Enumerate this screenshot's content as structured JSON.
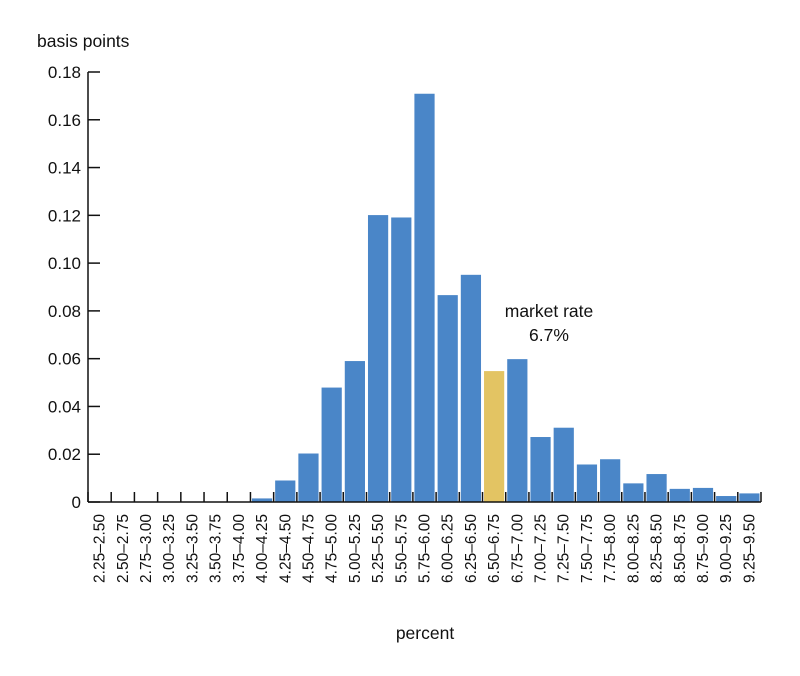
{
  "chart_data": {
    "type": "bar",
    "title": "",
    "ylabel": "basis points",
    "xlabel": "percent",
    "ylim": [
      0,
      0.18
    ],
    "yticks": [
      "0",
      "0.02",
      "0.04",
      "0.06",
      "0.08",
      "0.10",
      "0.12",
      "0.14",
      "0.16",
      "0.18"
    ],
    "grid": false,
    "categories": [
      "2.25–2.50",
      "2.50–2.75",
      "2.75–3.00",
      "3.00–3.25",
      "3.25–3.50",
      "3.50–3.75",
      "3.75–4.00",
      "4.00–4.25",
      "4.25–4.50",
      "4.50–4.75",
      "4.75–5.00",
      "5.00–5.25",
      "5.25–5.50",
      "5.50–5.75",
      "5.75–6.00",
      "6.00–6.25",
      "6.25–6.50",
      "6.50–6.75",
      "6.75–7.00",
      "7.00–7.25",
      "7.25–7.50",
      "7.50–7.75",
      "7.75–8.00",
      "8.00–8.25",
      "8.25–8.50",
      "8.50–8.75",
      "8.75–9.00",
      "9.00–9.25",
      "9.25–9.50"
    ],
    "values": [
      0,
      0,
      0,
      0,
      0,
      0,
      0,
      0.0015,
      0.009,
      0.0203,
      0.0479,
      0.059,
      0.1201,
      0.1191,
      0.1709,
      0.0866,
      0.0951,
      0.0548,
      0.0598,
      0.0272,
      0.0311,
      0.0157,
      0.0179,
      0.0078,
      0.0117,
      0.0055,
      0.0059,
      0.0025,
      0.0036
    ],
    "highlight_index": 17,
    "colors": {
      "bar": "#4a86c8",
      "highlight": "#e3c463",
      "axis": "#111111"
    },
    "annotation": {
      "line1": "market rate",
      "line2": "6.7%"
    }
  }
}
